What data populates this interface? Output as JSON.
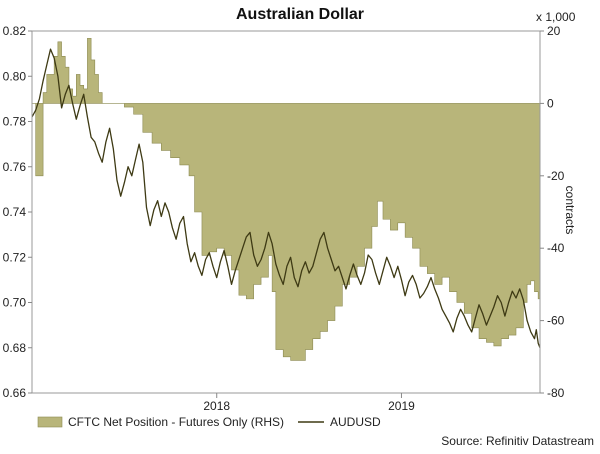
{
  "chart_data": {
    "type": "area+line",
    "title": "Australian Dollar",
    "left_axis": {
      "ticks": [
        0.66,
        0.68,
        0.7,
        0.72,
        0.74,
        0.76,
        0.78,
        0.8,
        0.82
      ],
      "tick_labels": [
        "0.66",
        "0.68",
        "0.70",
        "0.72",
        "0.74",
        "0.76",
        "0.78",
        "0.80",
        "0.82"
      ],
      "ylim": [
        0.66,
        0.82
      ]
    },
    "right_axis": {
      "label": "contracts",
      "unit_note": "x 1,000",
      "ticks": [
        20,
        0,
        -20,
        -40,
        -60,
        -80
      ],
      "tick_labels": [
        "20",
        "0",
        "-20",
        "-40",
        "-60",
        "-80"
      ],
      "ylim": [
        -80,
        20
      ]
    },
    "x_axis": {
      "range": [
        2017.0,
        2019.75
      ],
      "tick_labels": [
        "2018",
        "2019"
      ],
      "tick_values": [
        2018.0,
        2019.0
      ]
    },
    "series": [
      {
        "name": "CFTC Net Position - Futures Only (RHS)",
        "kind": "area",
        "axis": "right",
        "color": "#b8b57a",
        "edge_color": "#8c8a52",
        "points": [
          [
            2017.0,
            0
          ],
          [
            2017.02,
            -20
          ],
          [
            2017.04,
            -20
          ],
          [
            2017.06,
            3
          ],
          [
            2017.08,
            8
          ],
          [
            2017.1,
            8
          ],
          [
            2017.12,
            13
          ],
          [
            2017.14,
            17
          ],
          [
            2017.16,
            13
          ],
          [
            2017.18,
            10
          ],
          [
            2017.2,
            4
          ],
          [
            2017.22,
            2
          ],
          [
            2017.24,
            8
          ],
          [
            2017.26,
            5
          ],
          [
            2017.28,
            4
          ],
          [
            2017.3,
            18
          ],
          [
            2017.32,
            12
          ],
          [
            2017.34,
            8
          ],
          [
            2017.36,
            3
          ],
          [
            2017.38,
            0
          ],
          [
            2017.46,
            0
          ],
          [
            2017.5,
            -1
          ],
          [
            2017.55,
            -3
          ],
          [
            2017.6,
            -8
          ],
          [
            2017.65,
            -11
          ],
          [
            2017.7,
            -13
          ],
          [
            2017.75,
            -15
          ],
          [
            2017.8,
            -17
          ],
          [
            2017.85,
            -20
          ],
          [
            2017.88,
            -30
          ],
          [
            2017.92,
            -42
          ],
          [
            2017.96,
            -41
          ],
          [
            2018.0,
            -40
          ],
          [
            2018.04,
            -42
          ],
          [
            2018.08,
            -46
          ],
          [
            2018.12,
            -53
          ],
          [
            2018.16,
            -54
          ],
          [
            2018.2,
            -50
          ],
          [
            2018.24,
            -48
          ],
          [
            2018.28,
            -42
          ],
          [
            2018.3,
            -52
          ],
          [
            2018.32,
            -68
          ],
          [
            2018.36,
            -70
          ],
          [
            2018.4,
            -71
          ],
          [
            2018.44,
            -71
          ],
          [
            2018.48,
            -68
          ],
          [
            2018.52,
            -65
          ],
          [
            2018.56,
            -63
          ],
          [
            2018.6,
            -60
          ],
          [
            2018.64,
            -56
          ],
          [
            2018.68,
            -50
          ],
          [
            2018.72,
            -48
          ],
          [
            2018.76,
            -45
          ],
          [
            2018.8,
            -40
          ],
          [
            2018.84,
            -34
          ],
          [
            2018.87,
            -27
          ],
          [
            2018.9,
            -32
          ],
          [
            2018.94,
            -35
          ],
          [
            2018.98,
            -33
          ],
          [
            2019.02,
            -37
          ],
          [
            2019.06,
            -40
          ],
          [
            2019.1,
            -45
          ],
          [
            2019.14,
            -47
          ],
          [
            2019.18,
            -50
          ],
          [
            2019.22,
            -48
          ],
          [
            2019.26,
            -52
          ],
          [
            2019.3,
            -55
          ],
          [
            2019.34,
            -58
          ],
          [
            2019.38,
            -62
          ],
          [
            2019.42,
            -65
          ],
          [
            2019.46,
            -66
          ],
          [
            2019.5,
            -67
          ],
          [
            2019.54,
            -65
          ],
          [
            2019.58,
            -64
          ],
          [
            2019.62,
            -62
          ],
          [
            2019.66,
            -55
          ],
          [
            2019.68,
            -50
          ],
          [
            2019.7,
            -49
          ],
          [
            2019.72,
            -52
          ],
          [
            2019.74,
            -54
          ],
          [
            2019.75,
            -54
          ]
        ]
      },
      {
        "name": "AUDUSD",
        "kind": "line",
        "axis": "left",
        "color": "#3e3a14",
        "points": [
          [
            2017.0,
            0.782
          ],
          [
            2017.02,
            0.785
          ],
          [
            2017.04,
            0.79
          ],
          [
            2017.06,
            0.798
          ],
          [
            2017.08,
            0.805
          ],
          [
            2017.1,
            0.812
          ],
          [
            2017.12,
            0.808
          ],
          [
            2017.14,
            0.8
          ],
          [
            2017.16,
            0.786
          ],
          [
            2017.18,
            0.792
          ],
          [
            2017.2,
            0.796
          ],
          [
            2017.22,
            0.788
          ],
          [
            2017.24,
            0.781
          ],
          [
            2017.26,
            0.787
          ],
          [
            2017.28,
            0.792
          ],
          [
            2017.3,
            0.782
          ],
          [
            2017.32,
            0.773
          ],
          [
            2017.34,
            0.771
          ],
          [
            2017.36,
            0.766
          ],
          [
            2017.38,
            0.762
          ],
          [
            2017.4,
            0.771
          ],
          [
            2017.42,
            0.777
          ],
          [
            2017.44,
            0.768
          ],
          [
            2017.46,
            0.754
          ],
          [
            2017.48,
            0.747
          ],
          [
            2017.5,
            0.753
          ],
          [
            2017.52,
            0.76
          ],
          [
            2017.54,
            0.756
          ],
          [
            2017.56,
            0.763
          ],
          [
            2017.58,
            0.77
          ],
          [
            2017.6,
            0.762
          ],
          [
            2017.62,
            0.742
          ],
          [
            2017.64,
            0.734
          ],
          [
            2017.66,
            0.741
          ],
          [
            2017.68,
            0.745
          ],
          [
            2017.7,
            0.738
          ],
          [
            2017.72,
            0.744
          ],
          [
            2017.74,
            0.74
          ],
          [
            2017.76,
            0.733
          ],
          [
            2017.78,
            0.728
          ],
          [
            2017.8,
            0.735
          ],
          [
            2017.82,
            0.738
          ],
          [
            2017.84,
            0.726
          ],
          [
            2017.86,
            0.718
          ],
          [
            2017.88,
            0.722
          ],
          [
            2017.9,
            0.716
          ],
          [
            2017.92,
            0.712
          ],
          [
            2017.94,
            0.719
          ],
          [
            2017.96,
            0.722
          ],
          [
            2017.98,
            0.716
          ],
          [
            2018.0,
            0.711
          ],
          [
            2018.02,
            0.718
          ],
          [
            2018.04,
            0.723
          ],
          [
            2018.06,
            0.716
          ],
          [
            2018.08,
            0.708
          ],
          [
            2018.1,
            0.714
          ],
          [
            2018.12,
            0.719
          ],
          [
            2018.14,
            0.724
          ],
          [
            2018.16,
            0.729
          ],
          [
            2018.18,
            0.731
          ],
          [
            2018.2,
            0.721
          ],
          [
            2018.22,
            0.716
          ],
          [
            2018.24,
            0.719
          ],
          [
            2018.26,
            0.724
          ],
          [
            2018.28,
            0.731
          ],
          [
            2018.3,
            0.726
          ],
          [
            2018.32,
            0.717
          ],
          [
            2018.34,
            0.712
          ],
          [
            2018.36,
            0.708
          ],
          [
            2018.38,
            0.716
          ],
          [
            2018.4,
            0.72
          ],
          [
            2018.42,
            0.711
          ],
          [
            2018.44,
            0.707
          ],
          [
            2018.46,
            0.714
          ],
          [
            2018.48,
            0.718
          ],
          [
            2018.5,
            0.713
          ],
          [
            2018.52,
            0.716
          ],
          [
            2018.54,
            0.722
          ],
          [
            2018.56,
            0.728
          ],
          [
            2018.58,
            0.731
          ],
          [
            2018.6,
            0.724
          ],
          [
            2018.62,
            0.719
          ],
          [
            2018.64,
            0.714
          ],
          [
            2018.66,
            0.716
          ],
          [
            2018.68,
            0.711
          ],
          [
            2018.7,
            0.706
          ],
          [
            2018.72,
            0.712
          ],
          [
            2018.74,
            0.717
          ],
          [
            2018.76,
            0.712
          ],
          [
            2018.78,
            0.708
          ],
          [
            2018.8,
            0.713
          ],
          [
            2018.82,
            0.721
          ],
          [
            2018.84,
            0.719
          ],
          [
            2018.86,
            0.713
          ],
          [
            2018.88,
            0.708
          ],
          [
            2018.9,
            0.714
          ],
          [
            2018.92,
            0.72
          ],
          [
            2018.94,
            0.716
          ],
          [
            2018.96,
            0.711
          ],
          [
            2018.98,
            0.716
          ],
          [
            2019.0,
            0.71
          ],
          [
            2019.02,
            0.703
          ],
          [
            2019.04,
            0.709
          ],
          [
            2019.06,
            0.712
          ],
          [
            2019.08,
            0.708
          ],
          [
            2019.1,
            0.702
          ],
          [
            2019.12,
            0.704
          ],
          [
            2019.14,
            0.707
          ],
          [
            2019.16,
            0.711
          ],
          [
            2019.18,
            0.706
          ],
          [
            2019.2,
            0.702
          ],
          [
            2019.22,
            0.697
          ],
          [
            2019.24,
            0.694
          ],
          [
            2019.26,
            0.691
          ],
          [
            2019.28,
            0.687
          ],
          [
            2019.3,
            0.693
          ],
          [
            2019.32,
            0.697
          ],
          [
            2019.34,
            0.694
          ],
          [
            2019.36,
            0.69
          ],
          [
            2019.38,
            0.687
          ],
          [
            2019.4,
            0.693
          ],
          [
            2019.42,
            0.699
          ],
          [
            2019.44,
            0.695
          ],
          [
            2019.46,
            0.69
          ],
          [
            2019.48,
            0.694
          ],
          [
            2019.5,
            0.698
          ],
          [
            2019.52,
            0.703
          ],
          [
            2019.54,
            0.7
          ],
          [
            2019.56,
            0.694
          ],
          [
            2019.58,
            0.7
          ],
          [
            2019.6,
            0.705
          ],
          [
            2019.62,
            0.702
          ],
          [
            2019.64,
            0.706
          ],
          [
            2019.66,
            0.701
          ],
          [
            2019.68,
            0.692
          ],
          [
            2019.7,
            0.687
          ],
          [
            2019.72,
            0.684
          ],
          [
            2019.73,
            0.688
          ],
          [
            2019.74,
            0.682
          ],
          [
            2019.75,
            0.68
          ]
        ]
      }
    ],
    "legend": [
      {
        "label": "CFTC Net Position - Futures Only (RHS)",
        "kind": "area"
      },
      {
        "label": "AUDUSD",
        "kind": "line"
      }
    ],
    "source": "Source: Refinitiv Datastream"
  }
}
